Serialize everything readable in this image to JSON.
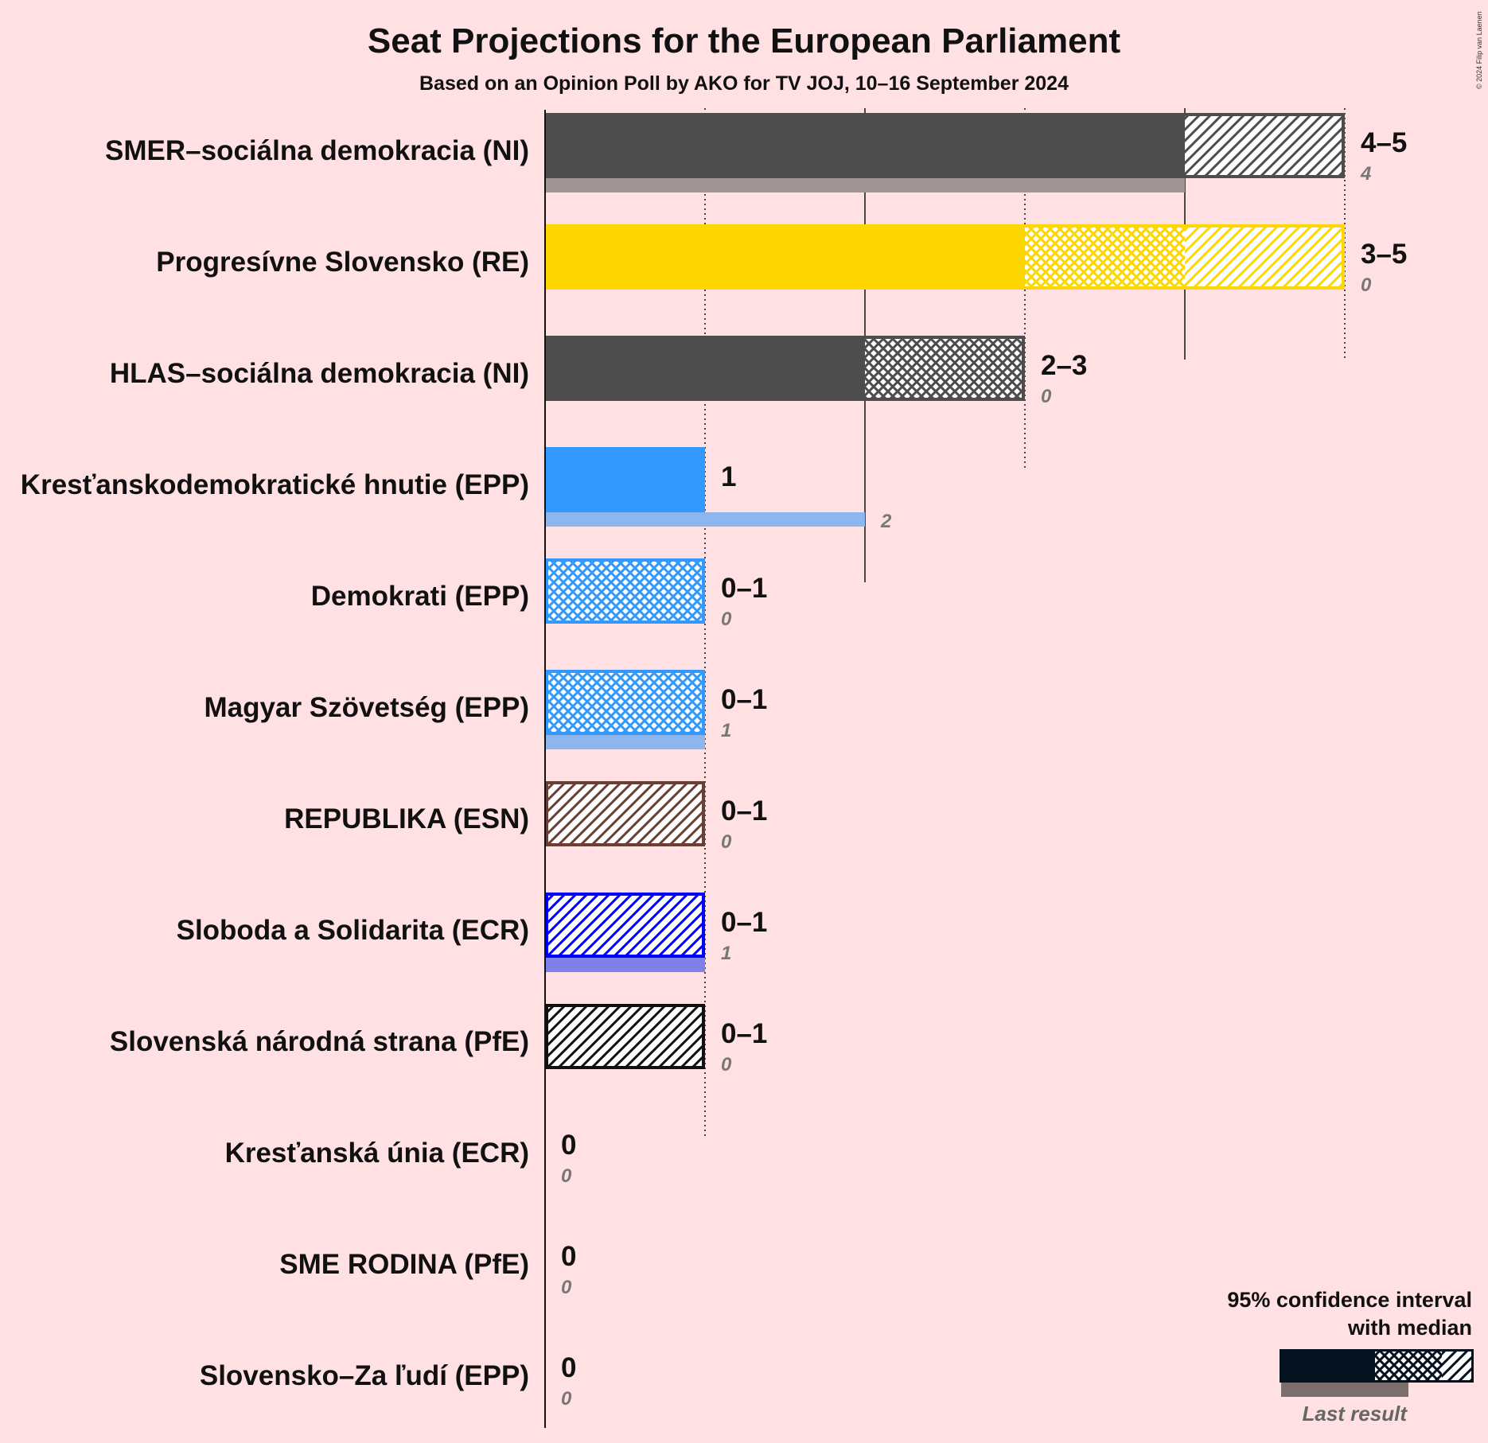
{
  "title": "Seat Projections for the European Parliament",
  "subtitle": "Based on an Opinion Poll by AKO for TV JOJ, 10–16 September 2024",
  "copyright": "© 2024 Filip van Laenen",
  "legend": {
    "line1": "95% confidence interval",
    "line2": "with median",
    "last_result": "Last result",
    "color": "#05111f"
  },
  "chart_data": {
    "type": "bar",
    "orientation": "horizontal",
    "x_unit": "seats",
    "xlim": [
      0,
      5
    ],
    "parties": [
      {
        "name": "SMER–sociálna demokracia (NI)",
        "low": 4,
        "median": 4,
        "high": 5,
        "range_label": "4–5",
        "last": 4,
        "last_label": "4",
        "color": "#4d4d4d",
        "last_color": "#a09494"
      },
      {
        "name": "Progresívne Slovensko (RE)",
        "low": 3,
        "median": 4,
        "high": 5,
        "range_label": "3–5",
        "last": 0,
        "last_label": "0",
        "color": "#ffd700",
        "last_color": "#e8c850"
      },
      {
        "name": "HLAS–sociálna demokracia (NI)",
        "low": 2,
        "median": 3,
        "high": 3,
        "range_label": "2–3",
        "last": 0,
        "last_label": "0",
        "color": "#4d4d4d",
        "last_color": "#a09494"
      },
      {
        "name": "Kresťanskodemokratické hnutie (EPP)",
        "low": 1,
        "median": 1,
        "high": 1,
        "range_label": "1",
        "last": 2,
        "last_label": "2",
        "color": "#3399ff",
        "last_color": "#8bb6ee"
      },
      {
        "name": "Demokrati (EPP)",
        "low": 0,
        "median": 1,
        "high": 1,
        "range_label": "0–1",
        "last": 0,
        "last_label": "0",
        "color": "#3399ff",
        "last_color": "#8bb6ee"
      },
      {
        "name": "Magyar Szövetség (EPP)",
        "low": 0,
        "median": 1,
        "high": 1,
        "range_label": "0–1",
        "last": 1,
        "last_label": "1",
        "color": "#3399ff",
        "last_color": "#8bb6ee"
      },
      {
        "name": "REPUBLIKA (ESN)",
        "low": 0,
        "median": 0,
        "high": 1,
        "range_label": "0–1",
        "last": 0,
        "last_label": "0",
        "color": "#6b3f33",
        "last_color": "#a08078"
      },
      {
        "name": "Sloboda a Solidarita (ECR)",
        "low": 0,
        "median": 0,
        "high": 1,
        "range_label": "0–1",
        "last": 1,
        "last_label": "1",
        "color": "#0000ff",
        "last_color": "#8080e8"
      },
      {
        "name": "Slovenská národná strana (PfE)",
        "low": 0,
        "median": 0,
        "high": 1,
        "range_label": "0–1",
        "last": 0,
        "last_label": "0",
        "color": "#111111",
        "last_color": "#888888"
      },
      {
        "name": "Kresťanská únia (ECR)",
        "low": 0,
        "median": 0,
        "high": 0,
        "range_label": "0",
        "last": 0,
        "last_label": "0",
        "color": "#0000ff",
        "last_color": "#8080e8"
      },
      {
        "name": "SME RODINA (PfE)",
        "low": 0,
        "median": 0,
        "high": 0,
        "range_label": "0",
        "last": 0,
        "last_label": "0",
        "color": "#4d4d4d",
        "last_color": "#a09494"
      },
      {
        "name": "Slovensko–Za ľudí (EPP)",
        "low": 0,
        "median": 0,
        "high": 0,
        "range_label": "0",
        "last": 0,
        "last_label": "0",
        "color": "#3399ff",
        "last_color": "#8bb6ee"
      }
    ]
  }
}
